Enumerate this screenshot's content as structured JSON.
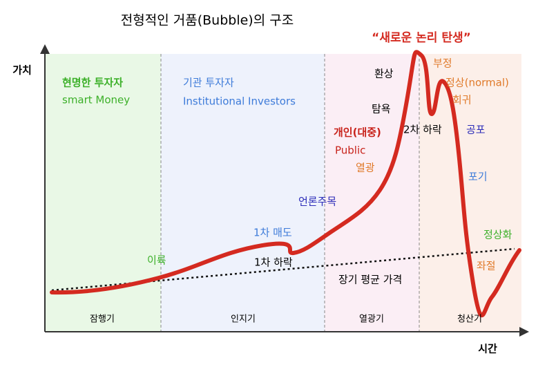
{
  "title": "전형적인 거품(Bubble)의 구조",
  "axes": {
    "y_label": "가치",
    "x_label": "시간"
  },
  "phases": [
    {
      "label": "잠행기"
    },
    {
      "label": "인지기"
    },
    {
      "label": "열광기"
    },
    {
      "label": "청산기"
    }
  ],
  "annotations": {
    "smart_money": {
      "label": "현명한 투자자",
      "sublabel": "smart Money"
    },
    "institutional": {
      "label": "기관 투자자",
      "sublabel": "Institutional Investors"
    },
    "new_logic": "“새로운 논리 탄생”",
    "illusion": "환상",
    "greed": "탐욕",
    "public": {
      "label": "개인(대중)",
      "sublabel": "Public"
    },
    "mania": "열광",
    "second_drop": "2차 하락",
    "denial": "부정",
    "normal": "정상(normal)",
    "return": "회귀",
    "fear": "공포",
    "capitulation": "포기",
    "media": "언론주목",
    "first_sell": "1차 매도",
    "takeoff": "이륙",
    "first_drop": "1차 하락",
    "long_term_mean": "장기 평균 가격",
    "normalization": "정상화",
    "despair": "좌절"
  }
}
